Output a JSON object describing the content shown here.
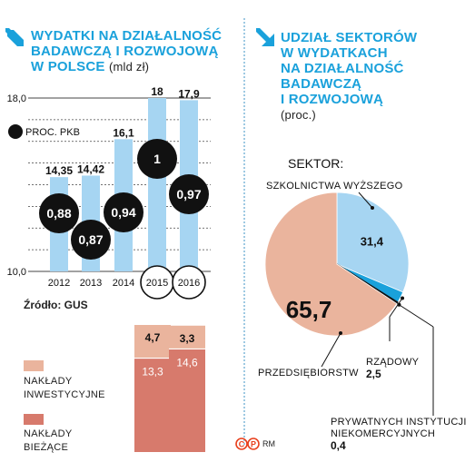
{
  "left_title": {
    "line1": "WYDATKI NA DZIAŁALNOŚĆ",
    "line2": "BADAWCZĄ I ROZWOJOWĄ",
    "line3": "W POLSCE",
    "unit": "(mld zł)"
  },
  "right_title": {
    "line1": "UDZIAŁ SEKTORÓW",
    "line2": "W WYDATKACH",
    "line3": "NA DZIAŁALNOŚĆ",
    "line4": "BADAWCZĄ",
    "line5": "I ROZWOJOWĄ",
    "unit": "(proc.)"
  },
  "source": "Źródło: GUS",
  "sektor_label": "SEKTOR:",
  "credit": "RM",
  "colors": {
    "accent": "#1aa1db",
    "bar": "#a6d5f2",
    "dark": "#111111",
    "invest": "#eab49d",
    "current": "#d77a6c",
    "pie_light": "#a6d5f2",
    "pie_pink": "#eab49d",
    "pie_blue": "#1aa1db"
  },
  "chart_data": [
    {
      "type": "bar",
      "categories": [
        "2012",
        "2013",
        "2014",
        "2015",
        "2016"
      ],
      "values": [
        14.35,
        14.42,
        16.1,
        18,
        17.9
      ],
      "value_labels": [
        "14,35",
        "14,42",
        "16,1",
        "18",
        "17,9"
      ],
      "ylim": [
        10.0,
        18.0
      ],
      "ytick_labels": [
        "18,0",
        "10,0"
      ],
      "gdp_label": "PROC. PKB",
      "gdp_share": [
        0.88,
        0.87,
        0.94,
        1,
        0.97
      ],
      "gdp_share_labels": [
        "0,88",
        "0,87",
        "0,94",
        "1",
        "0,97"
      ]
    },
    {
      "type": "bar",
      "stacked": true,
      "categories": [
        "2015",
        "2016"
      ],
      "series": [
        {
          "name": "NAKŁADY INWESTYCYJNE",
          "values": [
            4.7,
            3.3
          ],
          "labels": [
            "4,7",
            "3,3"
          ]
        },
        {
          "name": "NAKŁADY BIEŻĄCE",
          "values": [
            13.3,
            14.6
          ],
          "labels": [
            "13,3",
            "14,6"
          ]
        }
      ],
      "legend": [
        {
          "line1": "NAKŁADY",
          "line2": "INWESTYCYJNE"
        },
        {
          "line1": "NAKŁADY",
          "line2": "BIEŻĄCE"
        }
      ]
    },
    {
      "type": "pie",
      "title": "SEKTOR:",
      "slices": [
        {
          "name": "SZKOLNICTWA WYŻSZEGO",
          "value": 31.4,
          "label": "31,4"
        },
        {
          "name": "RZĄDOWY",
          "value": 2.5,
          "label": "2,5"
        },
        {
          "name": "PRYWATNYCH INSTYTUCJI NIEKOMERCYJNYCH",
          "name_line1": "PRYWATNYCH INSTYTUCJI",
          "name_line2": "NIEKOMERCYJNYCH",
          "value": 0.4,
          "label": "0,4"
        },
        {
          "name": "PRZEDSIĘBIORSTW",
          "value": 65.7,
          "label": "65,7"
        }
      ]
    }
  ]
}
